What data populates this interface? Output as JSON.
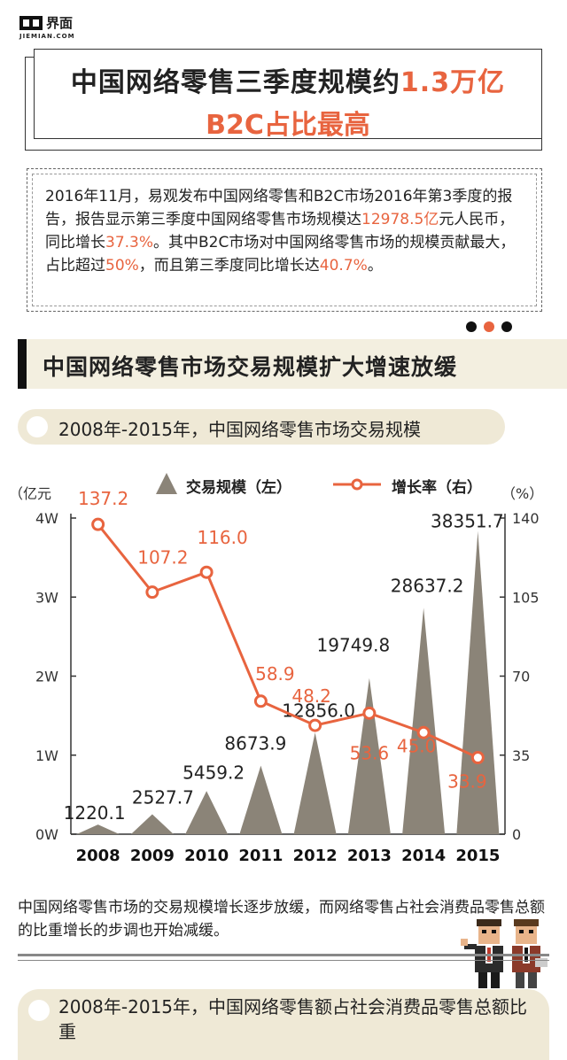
{
  "logo": {
    "cn": "界面",
    "en": "JIEMIAN.COM"
  },
  "title": {
    "line1_black": "中国网络零售三季度规模约",
    "line1_red": "1.3万亿",
    "line2": "B2C占比最高"
  },
  "intro": {
    "p1": "2016年11月，易观发布中国网络零售和B2C市场2016年第3季度的报告，报告显示第三季度中国网络零售市场规模达",
    "v1": "12978.5亿",
    "p2": "元人民币，同比增长",
    "v2": "37.3%",
    "p3": "。其中B2C市场对中国网络零售市场的规模贡献最大，占比超过",
    "v3": "50%",
    "p4": "，而且第三季度同比增长达",
    "v4": "40.7%",
    "p5": "。"
  },
  "section_title": "中国网络零售市场交易规模扩大增速放缓",
  "subtitle1": "2008年-2015年，中国网络零售市场交易规模",
  "chart_data": {
    "type": "bar",
    "categories": [
      "2008",
      "2009",
      "2010",
      "2011",
      "2012",
      "2013",
      "2014",
      "2015"
    ],
    "series": [
      {
        "name": "交易规模（左）",
        "values": [
          1220.1,
          2527.7,
          5459.2,
          8673.9,
          12856.0,
          19749.8,
          28637.2,
          38351.7
        ],
        "labels": [
          "1220.1",
          "2527.7",
          "5459.2",
          "8673.9",
          "12856.0",
          "19749.8",
          "28637.2",
          "38351.7"
        ],
        "color": "#8b8478"
      },
      {
        "name": "增长率（右）",
        "values": [
          137.2,
          107.2,
          116.0,
          58.9,
          48.2,
          53.6,
          45.0,
          33.9
        ],
        "labels": [
          "137.2",
          "107.2",
          "116.0",
          "58.9",
          "48.2",
          "53.6",
          "45.0",
          "33.9"
        ],
        "color": "#e8643f"
      }
    ],
    "ylabel_left": "（亿元",
    "ylabel_right": "（%）",
    "left_ticks": [
      "0W",
      "1W",
      "2W",
      "3W",
      "4W"
    ],
    "right_ticks": [
      "0",
      "35",
      "70",
      "105",
      "140"
    ],
    "ylim_left": [
      0,
      40000
    ],
    "ylim_right": [
      0,
      140
    ]
  },
  "note": "中国网络零售市场的交易规模增长逐步放缓，而网络零售占社会消费品零售总额的比重增长的步调也开始减缓。",
  "subtitle2": "2008年-2015年，中国网络零售额占社会消费品零售总额比重"
}
